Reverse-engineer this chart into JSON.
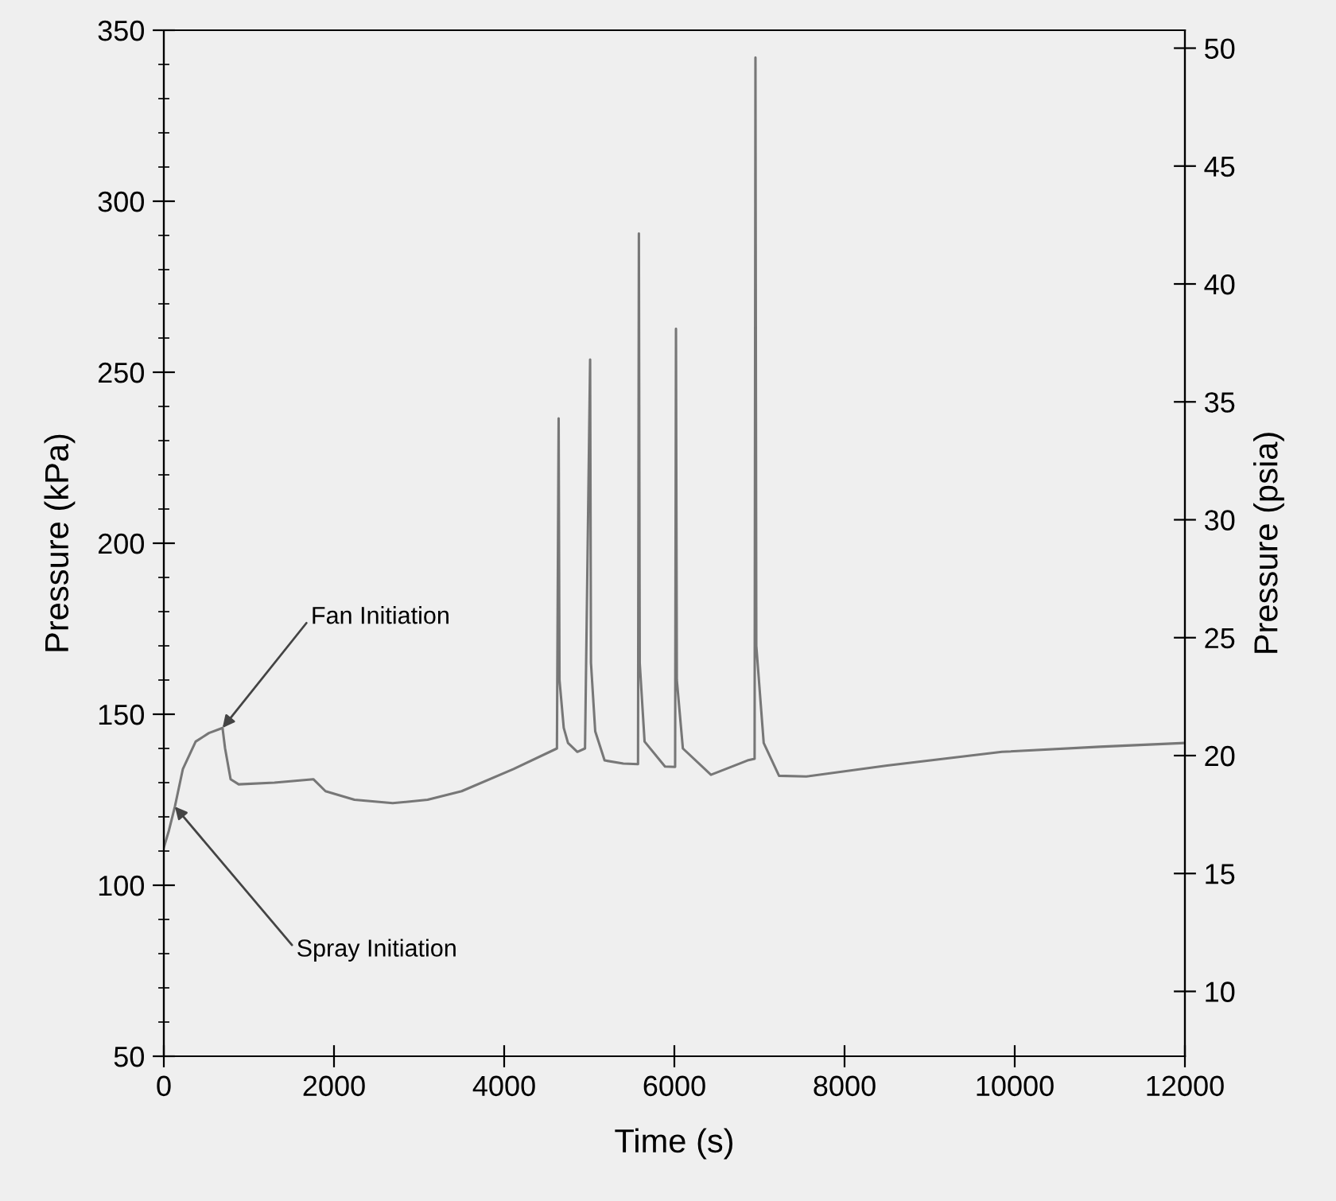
{
  "chart_data": {
    "type": "line",
    "xlabel": "Time (s)",
    "ylabel": "Pressure (kPa)",
    "y2label": "Pressure (psia)",
    "xlim": [
      0,
      12000
    ],
    "xticks": [
      0,
      2000,
      4000,
      6000,
      8000,
      10000,
      12000
    ],
    "ylim": [
      50,
      350
    ],
    "yticks": [
      50,
      100,
      150,
      200,
      250,
      300,
      350
    ],
    "y2lim": [
      7.25,
      50.76
    ],
    "y2ticks": [
      10,
      15,
      20,
      25,
      30,
      35,
      40,
      45,
      50
    ],
    "grid": false,
    "legend": false,
    "marker": "none",
    "line_style": "solid",
    "annotations": [
      {
        "text": "Fan Initiation",
        "x": 690,
        "y": 146
      },
      {
        "text": "Spray Initiation",
        "x": 130,
        "y": 123
      }
    ],
    "series": [
      {
        "color": "#777777",
        "x": [
          0,
          60,
          130,
          224,
          374,
          530,
          690,
          720,
          785,
          880,
          1300,
          1757,
          1900,
          2240,
          2690,
          3100,
          3500,
          4110,
          4620,
          4640,
          4650,
          4700,
          4750,
          4860,
          4950,
          5010,
          5020,
          5070,
          5180,
          5400,
          5573,
          5583,
          5593,
          5650,
          5890,
          6009,
          6019,
          6029,
          6100,
          6430,
          6860,
          6943,
          6953,
          6963,
          7050,
          7230,
          7550,
          8500,
          9850,
          11000,
          12000
        ],
        "values": [
          111,
          116,
          123,
          134,
          142,
          144.5,
          146,
          140,
          131,
          129.5,
          130,
          131,
          127.5,
          125,
          124,
          125,
          127.5,
          134,
          140,
          236.5,
          160,
          146,
          141.6,
          139,
          140,
          253.7,
          165,
          145,
          136.5,
          135.6,
          135.4,
          290.6,
          165,
          142,
          134.7,
          134.6,
          262.7,
          160,
          140,
          132.3,
          136.5,
          137,
          342,
          170,
          141.6,
          132,
          131.8,
          135,
          139,
          140.5,
          141.6
        ]
      }
    ]
  }
}
